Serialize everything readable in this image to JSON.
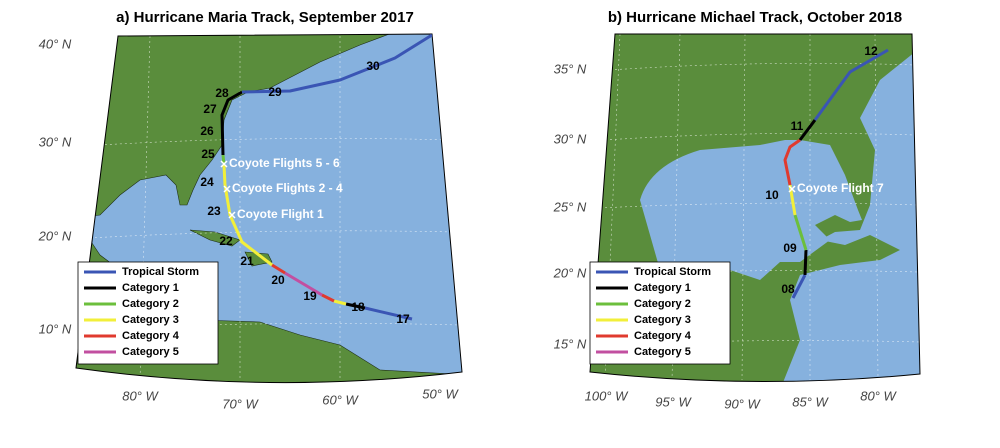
{
  "panels": [
    {
      "title": "a) Hurricane Maria Track, September 2017",
      "lat_labels": [
        "40° N",
        "30° N",
        "20° N",
        "10° N"
      ],
      "lon_labels": [
        "80° W",
        "70° W",
        "60° W",
        "50° W"
      ],
      "track_labels": [
        "17",
        "18",
        "19",
        "20",
        "21",
        "22",
        "23",
        "24",
        "25",
        "26",
        "27",
        "28",
        "29",
        "30"
      ],
      "annotations": [
        "Coyote Flights 5 - 6",
        "Coyote Flights 2 - 4",
        "Coyote Flight 1"
      ],
      "legend": [
        {
          "label": "Tropical Storm",
          "color": "#3a55b4"
        },
        {
          "label": "Category 1",
          "color": "#000000"
        },
        {
          "label": "Category 2",
          "color": "#6cbf3c"
        },
        {
          "label": "Category 3",
          "color": "#f2ef3a"
        },
        {
          "label": "Category 4",
          "color": "#e03a2e"
        },
        {
          "label": "Category 5",
          "color": "#c24fa0"
        }
      ]
    },
    {
      "title": "b) Hurricane Michael Track, October 2018",
      "lat_labels": [
        "35° N",
        "30° N",
        "25° N",
        "20° N",
        "15° N"
      ],
      "lon_labels": [
        "100° W",
        "95° W",
        "90° W",
        "85° W",
        "80° W"
      ],
      "track_labels": [
        "08",
        "09",
        "10",
        "11",
        "12"
      ],
      "annotations": [
        "Coyote Flight 7"
      ],
      "legend": [
        {
          "label": "Tropical Storm",
          "color": "#3a55b4"
        },
        {
          "label": "Category 1",
          "color": "#000000"
        },
        {
          "label": "Category 2",
          "color": "#6cbf3c"
        },
        {
          "label": "Category 3",
          "color": "#f2ef3a"
        },
        {
          "label": "Category 4",
          "color": "#e03a2e"
        },
        {
          "label": "Category 5",
          "color": "#c24fa0"
        }
      ]
    }
  ]
}
